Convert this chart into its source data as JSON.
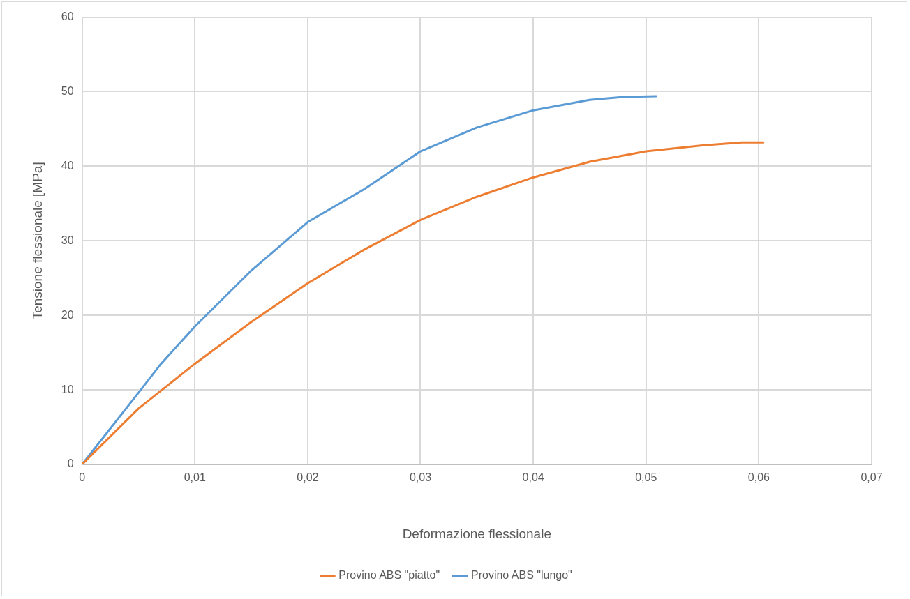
{
  "chart_data": {
    "type": "line",
    "xlabel": "Deformazione flessionale",
    "ylabel": "Tensione flessionale [MPa]",
    "xlim": [
      0,
      0.07
    ],
    "xticks": [
      {
        "value": 0,
        "label": "0"
      },
      {
        "value": 0.01,
        "label": "0,01"
      },
      {
        "value": 0.02,
        "label": "0,02"
      },
      {
        "value": 0.03,
        "label": "0,03"
      },
      {
        "value": 0.04,
        "label": "0,04"
      },
      {
        "value": 0.05,
        "label": "0,05"
      },
      {
        "value": 0.06,
        "label": "0,06"
      },
      {
        "value": 0.07,
        "label": "0,07"
      }
    ],
    "ylim": [
      0,
      60
    ],
    "yticks": [
      0,
      10,
      20,
      30,
      40,
      50,
      60
    ],
    "grid": true,
    "legend": "bottom",
    "marker": "none",
    "line_style": "solid",
    "series": [
      {
        "name": "Provino ABS \"piatto\"",
        "color": "#ed7d31",
        "x": [
          0,
          0.005,
          0.01,
          0.015,
          0.02,
          0.025,
          0.03,
          0.035,
          0.04,
          0.045,
          0.05,
          0.055,
          0.0585,
          0.0604
        ],
        "values": [
          0,
          7.5,
          13.5,
          19.1,
          24.3,
          28.8,
          32.8,
          35.9,
          38.5,
          40.6,
          42.0,
          42.8,
          43.2,
          43.2
        ]
      },
      {
        "name": "Provino ABS \"lungo\"",
        "color": "#5b9bd5",
        "x": [
          0,
          0.0052,
          0.007,
          0.01,
          0.015,
          0.02,
          0.025,
          0.03,
          0.035,
          0.04,
          0.045,
          0.048,
          0.0509
        ],
        "values": [
          0,
          10,
          13.5,
          18.5,
          26.0,
          32.5,
          36.9,
          42.0,
          45.2,
          47.5,
          48.9,
          49.3,
          49.4
        ]
      }
    ]
  }
}
